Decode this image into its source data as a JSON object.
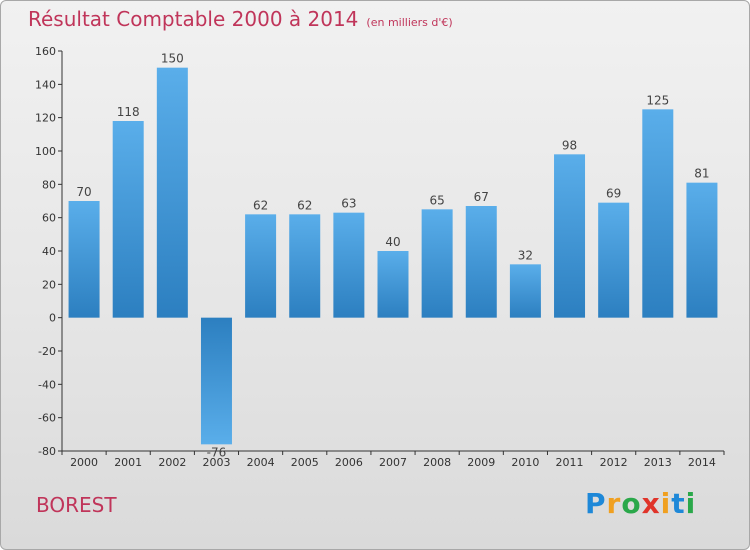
{
  "chart_data": {
    "type": "bar",
    "title": "Résultat Comptable 2000 à 2014",
    "unit": "(en milliers d'€)",
    "categories": [
      "2000",
      "2001",
      "2002",
      "2003",
      "2004",
      "2005",
      "2006",
      "2007",
      "2008",
      "2009",
      "2010",
      "2011",
      "2012",
      "2013",
      "2014"
    ],
    "values": [
      70,
      118,
      150,
      -76,
      62,
      62,
      63,
      40,
      65,
      67,
      32,
      98,
      69,
      125,
      81
    ],
    "ylim": [
      -80,
      160
    ],
    "yticks": [
      160,
      140,
      120,
      100,
      80,
      60,
      40,
      20,
      0,
      -20,
      -40,
      -60,
      -80
    ],
    "grid": false,
    "xlabel": "",
    "ylabel": ""
  },
  "commune": "BOREST",
  "logo": [
    "P",
    "r",
    "o",
    "x",
    "i",
    "t",
    "i"
  ],
  "colors": {
    "title": "#c0355a",
    "bar_light": "#5aaeea",
    "bar_dark": "#2c7fc0"
  }
}
